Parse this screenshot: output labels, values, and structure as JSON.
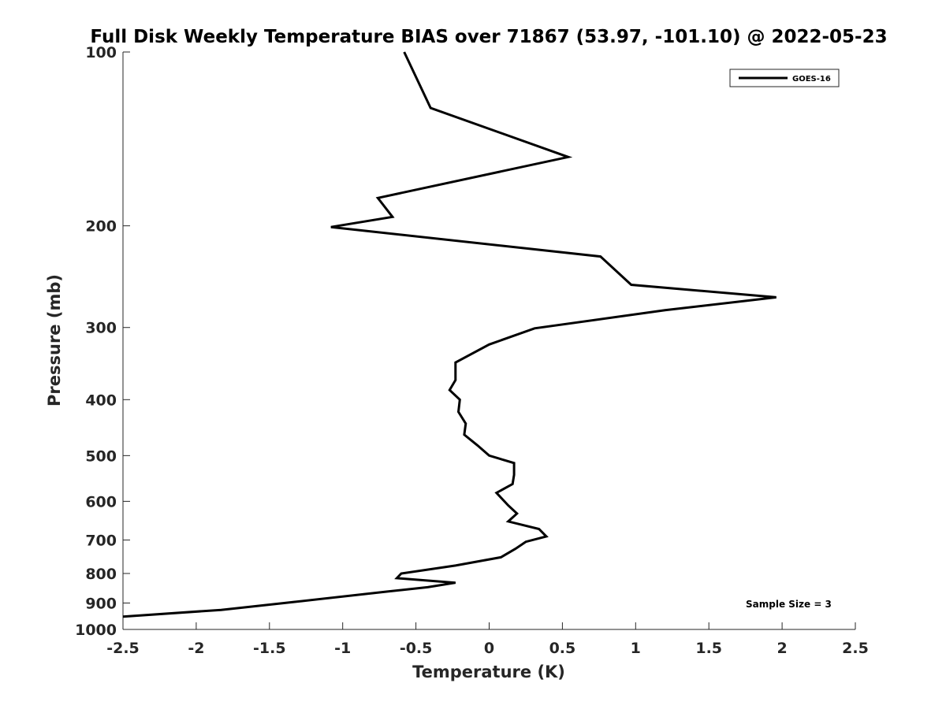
{
  "chart_data": {
    "type": "line",
    "title": "Full Disk Weekly Temperature BIAS over 71867 (53.97, -101.10) @ 2022-05-23",
    "xlabel": "Temperature (K)",
    "ylabel": "Pressure (mb)",
    "xlim": [
      -2.5,
      2.5
    ],
    "ylim": [
      100,
      1000
    ],
    "y_scale": "log",
    "y_reversed": true,
    "grid": false,
    "legend_position": "top-right",
    "x_ticks": [
      "-2.5",
      "-2",
      "-1.5",
      "-1",
      "-0.5",
      "0",
      "0.5",
      "1",
      "1.5",
      "2",
      "2.5"
    ],
    "y_ticks": [
      "100",
      "200",
      "300",
      "400",
      "500",
      "600",
      "700",
      "800",
      "900",
      "1000"
    ],
    "annotation": "Sample Size = 3",
    "series": [
      {
        "name": "GOES-16",
        "color": "#000000",
        "points": [
          {
            "x": -0.58,
            "p": 100
          },
          {
            "x": -0.4,
            "p": 125
          },
          {
            "x": 0.54,
            "p": 152
          },
          {
            "x": -0.76,
            "p": 179
          },
          {
            "x": -0.66,
            "p": 193
          },
          {
            "x": -1.08,
            "p": 201
          },
          {
            "x": 0.76,
            "p": 226
          },
          {
            "x": 0.97,
            "p": 253
          },
          {
            "x": 1.96,
            "p": 266
          },
          {
            "x": 1.2,
            "p": 280
          },
          {
            "x": 0.31,
            "p": 301
          },
          {
            "x": 0.0,
            "p": 321
          },
          {
            "x": -0.23,
            "p": 345
          },
          {
            "x": -0.23,
            "p": 370
          },
          {
            "x": -0.27,
            "p": 385
          },
          {
            "x": -0.2,
            "p": 400
          },
          {
            "x": -0.21,
            "p": 420
          },
          {
            "x": -0.16,
            "p": 440
          },
          {
            "x": -0.17,
            "p": 460
          },
          {
            "x": -0.08,
            "p": 480
          },
          {
            "x": 0.0,
            "p": 500
          },
          {
            "x": 0.17,
            "p": 515
          },
          {
            "x": 0.17,
            "p": 540
          },
          {
            "x": 0.16,
            "p": 560
          },
          {
            "x": 0.05,
            "p": 580
          },
          {
            "x": 0.13,
            "p": 610
          },
          {
            "x": 0.19,
            "p": 630
          },
          {
            "x": 0.13,
            "p": 650
          },
          {
            "x": 0.34,
            "p": 670
          },
          {
            "x": 0.39,
            "p": 690
          },
          {
            "x": 0.25,
            "p": 705
          },
          {
            "x": 0.18,
            "p": 725
          },
          {
            "x": 0.08,
            "p": 750
          },
          {
            "x": -0.23,
            "p": 775
          },
          {
            "x": -0.6,
            "p": 800
          },
          {
            "x": -0.63,
            "p": 815
          },
          {
            "x": -0.23,
            "p": 830
          },
          {
            "x": -0.42,
            "p": 845
          },
          {
            "x": -0.7,
            "p": 860
          },
          {
            "x": -1.4,
            "p": 900
          },
          {
            "x": -1.83,
            "p": 925
          },
          {
            "x": -2.5,
            "p": 950
          }
        ]
      }
    ]
  }
}
